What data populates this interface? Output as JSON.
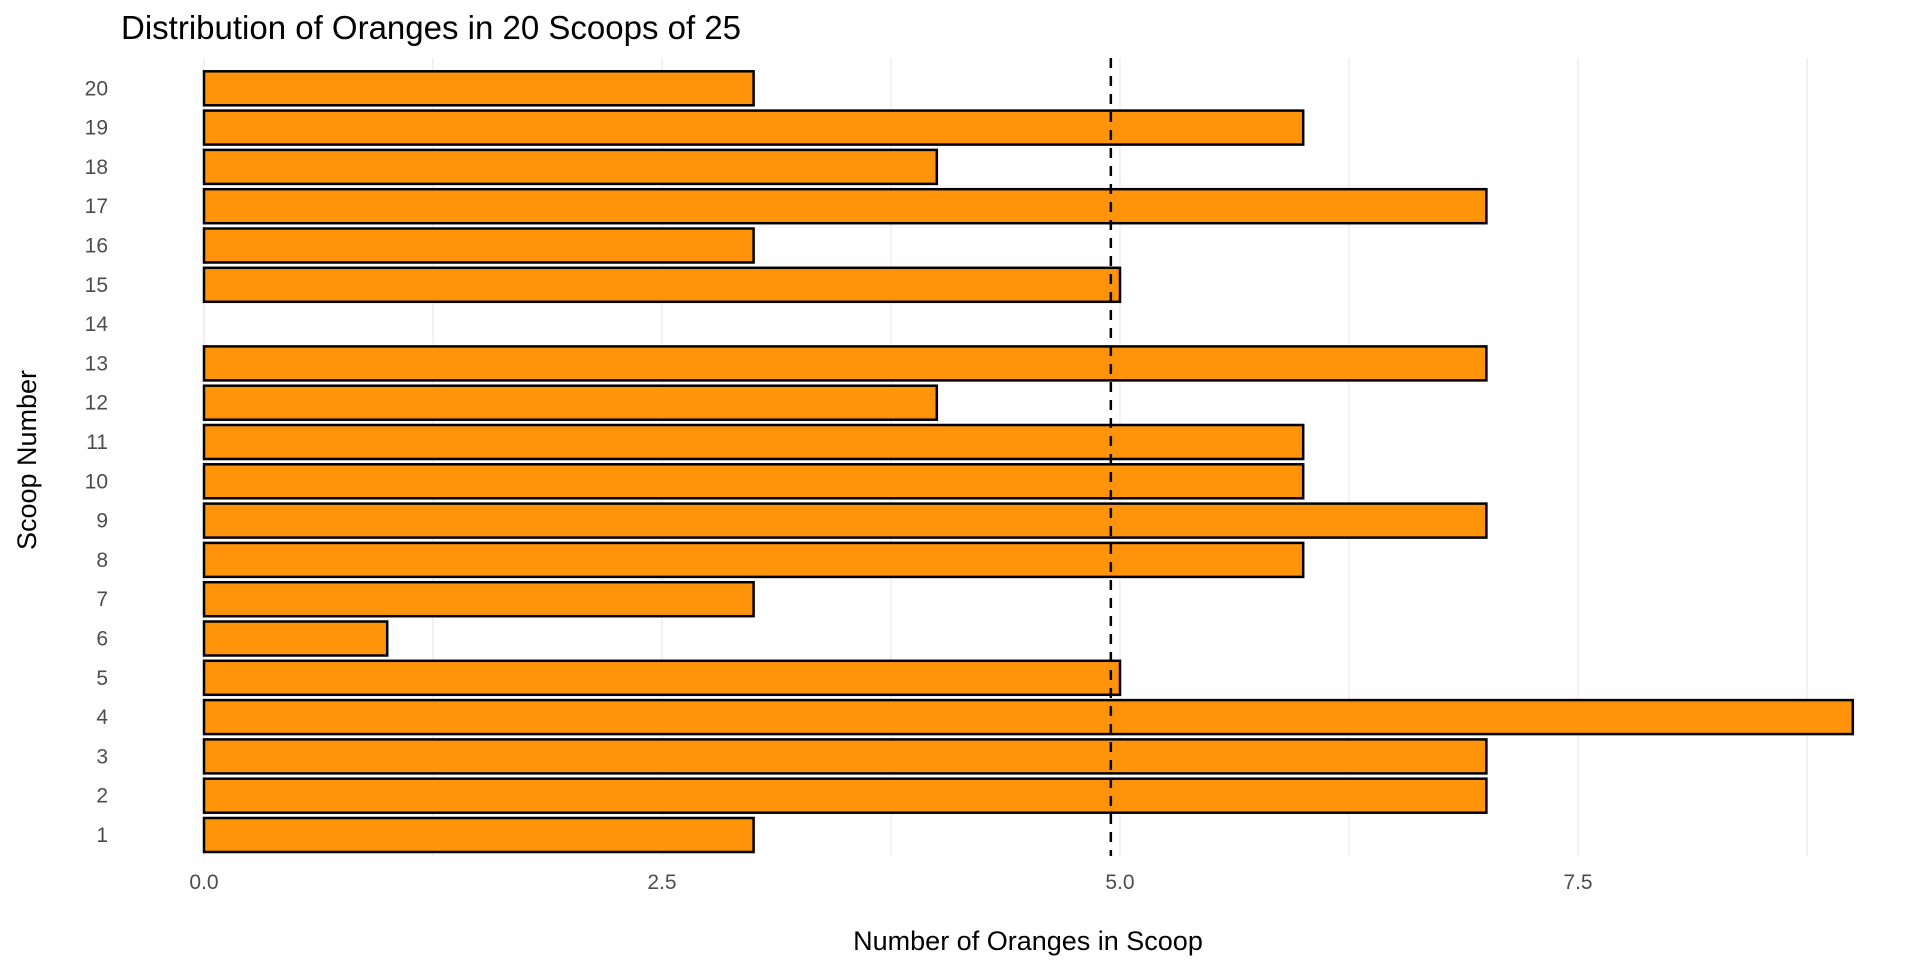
{
  "chart_data": {
    "type": "bar",
    "orientation": "horizontal",
    "title": "Distribution of Oranges in 20 Scoops of 25",
    "xlabel": "Number of Oranges in Scoop",
    "ylabel": "Scoop Number",
    "categories": [
      "1",
      "2",
      "3",
      "4",
      "5",
      "6",
      "7",
      "8",
      "9",
      "10",
      "11",
      "12",
      "13",
      "14",
      "15",
      "16",
      "17",
      "18",
      "19",
      "20"
    ],
    "values": [
      3,
      7,
      7,
      9,
      5,
      1,
      3,
      6,
      7,
      6,
      6,
      4,
      7,
      0,
      5,
      3,
      7,
      4,
      6,
      3
    ],
    "xlim": [
      0,
      9
    ],
    "x_ticks": [
      0,
      2.5,
      5,
      7.5
    ],
    "x_tick_labels": [
      "0.0",
      "2.5",
      "5.0",
      "7.5"
    ],
    "x_minor_gridlines": [
      1.25,
      3.75,
      6.25,
      8.75
    ],
    "reference_line": {
      "x": 4.95,
      "style": "dashed",
      "color": "#000000"
    },
    "grid": true,
    "legend": "none",
    "colors": {
      "bar_fill": "#FF930A",
      "bar_stroke": "#000000",
      "grid": "#e6e6e6",
      "tick_text": "#4d4d4d"
    }
  }
}
